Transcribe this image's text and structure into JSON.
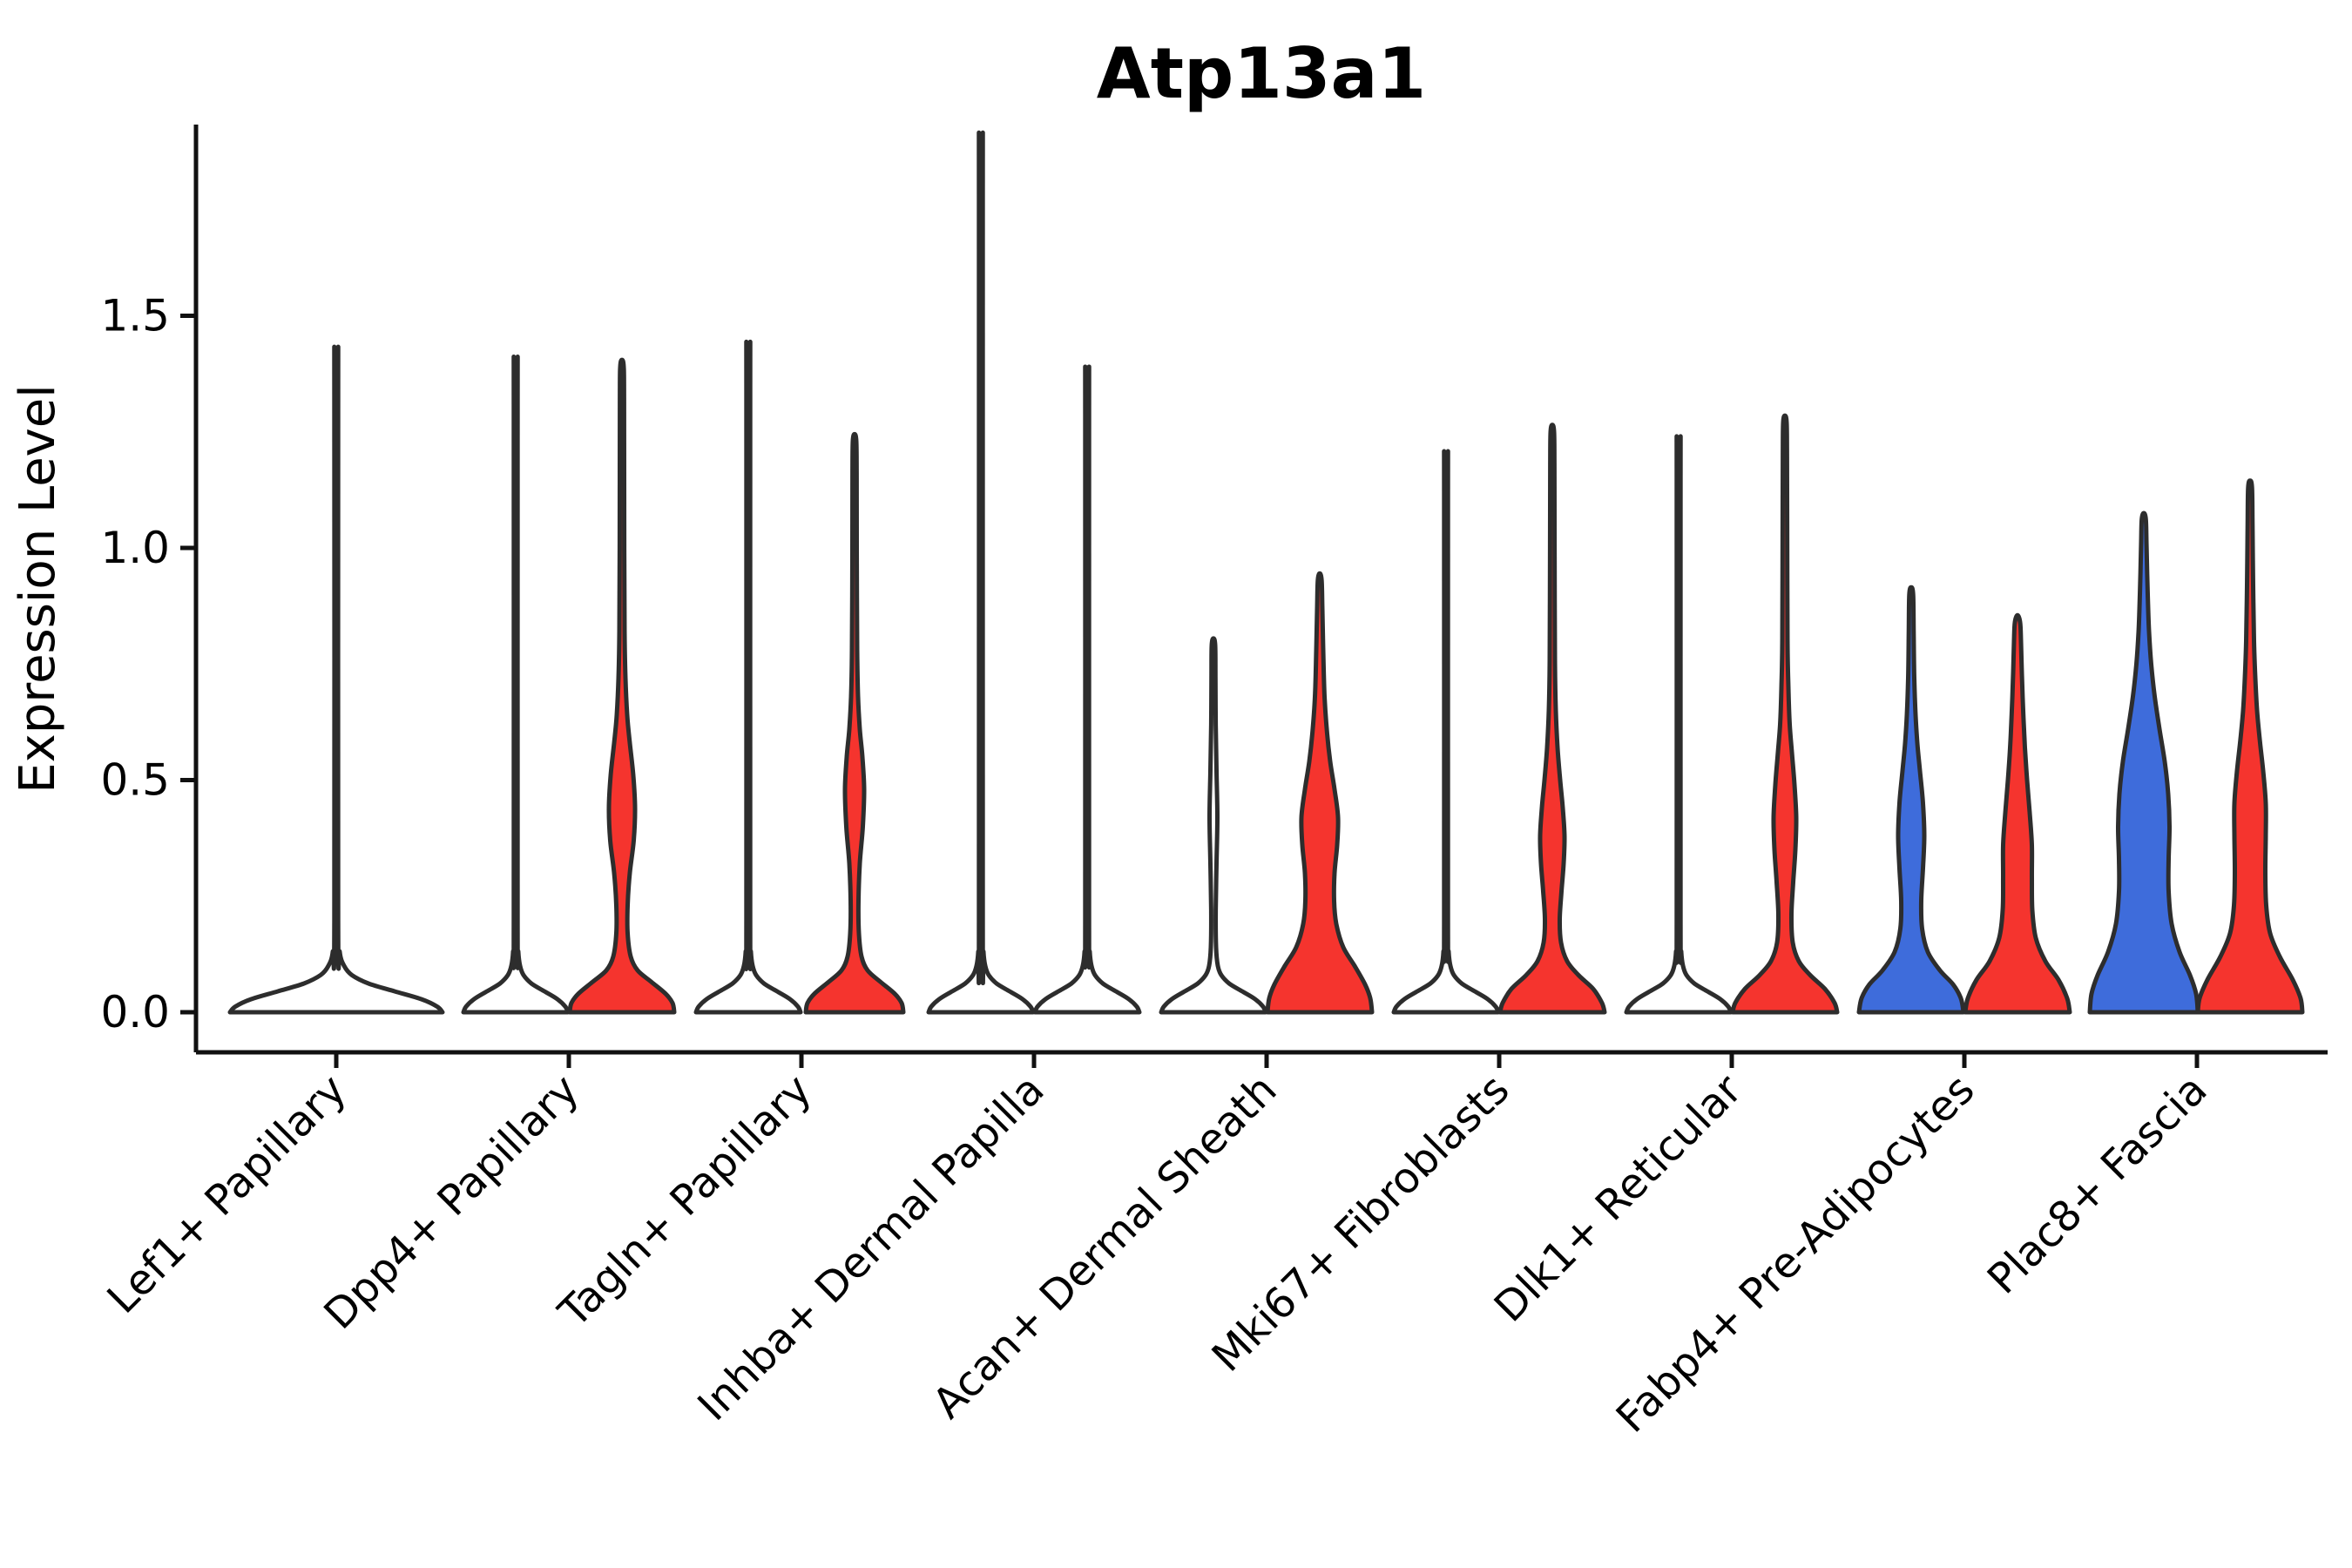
{
  "title": "Atp13a1",
  "y_axis": {
    "label": "Expression Level"
  },
  "colors": {
    "red": "#F5342E",
    "blue": "#3E6CDB",
    "violin_stroke": "#2D2D2D",
    "axis": "#111111",
    "text": "#000000",
    "background": "#ffffff"
  },
  "chart_data": {
    "type": "violin",
    "title": "Atp13a1",
    "xlabel": "",
    "ylabel": "Expression Level",
    "ylim": [
      -0.09,
      1.91
    ],
    "yticks": [
      0.0,
      0.5,
      1.0,
      1.5
    ],
    "ytick_labels": [
      "0.0",
      "0.5",
      "1.0",
      "1.5"
    ],
    "grid": false,
    "legend": null,
    "categories": [
      "Lef1+ Papillary",
      "Dpp4+ Papillary",
      "Tagln+ Papillary",
      "Inhba+ Dermal Papilla",
      "Acan+ Dermal Sheath",
      "Mki67+ Fibroblasts",
      "Dlk1+ Reticular",
      "Fabp4+ Pre-Adipocytes",
      "Plac8+ Fascia"
    ],
    "groups": [
      {
        "category": "Lef1+ Papillary",
        "violins": [
          {
            "side": "single",
            "color": "none",
            "max": 1.39,
            "profile": "lef1_single"
          }
        ]
      },
      {
        "category": "Dpp4+ Papillary",
        "violins": [
          {
            "side": "left",
            "color": "none",
            "max": 1.37,
            "profile": "collapsed"
          },
          {
            "side": "right",
            "color": "red",
            "max": 1.39,
            "profile": "dpp4_right"
          }
        ]
      },
      {
        "category": "Tagln+ Papillary",
        "violins": [
          {
            "side": "left",
            "color": "none",
            "max": 1.4,
            "profile": "collapsed"
          },
          {
            "side": "right",
            "color": "red",
            "max": 1.23,
            "profile": "tagln_right"
          }
        ]
      },
      {
        "category": "Inhba+ Dermal Papilla",
        "violins": [
          {
            "side": "left",
            "color": "none",
            "max": 1.82,
            "profile": "collapsed"
          },
          {
            "side": "right",
            "color": "none",
            "max": 1.35,
            "profile": "collapsed"
          }
        ]
      },
      {
        "category": "Acan+ Dermal Sheath",
        "violins": [
          {
            "side": "left",
            "color": "none",
            "max": 0.79,
            "profile": "acan_left"
          },
          {
            "side": "right",
            "color": "red",
            "max": 0.93,
            "profile": "acan_right"
          }
        ]
      },
      {
        "category": "Mki67+ Fibroblasts",
        "violins": [
          {
            "side": "left",
            "color": "none",
            "max": 1.18,
            "profile": "collapsed"
          },
          {
            "side": "right",
            "color": "red",
            "max": 1.25,
            "profile": "mki67_right"
          }
        ]
      },
      {
        "category": "Dlk1+ Reticular",
        "violins": [
          {
            "side": "left",
            "color": "none",
            "max": 1.21,
            "profile": "collapsed"
          },
          {
            "side": "right",
            "color": "red",
            "max": 1.27,
            "profile": "dlk1_right"
          }
        ]
      },
      {
        "category": "Fabp4+ Pre-Adipocytes",
        "violins": [
          {
            "side": "left",
            "color": "blue",
            "max": 0.9,
            "profile": "fabp4_left"
          },
          {
            "side": "right",
            "color": "red",
            "max": 0.84,
            "profile": "fabp4_right"
          }
        ]
      },
      {
        "category": "Plac8+ Fascia",
        "violins": [
          {
            "side": "left",
            "color": "blue",
            "max": 1.06,
            "profile": "plac8_left"
          },
          {
            "side": "right",
            "color": "red",
            "max": 1.13,
            "profile": "plac8_right"
          }
        ]
      }
    ],
    "profiles": {
      "collapsed": [
        [
          0,
          60
        ],
        [
          0.012,
          57
        ],
        [
          0.028,
          48
        ],
        [
          0.045,
          33
        ],
        [
          0.062,
          18
        ],
        [
          0.08,
          9
        ],
        [
          0.1,
          5
        ],
        [
          0.13,
          3
        ],
        [
          0.2,
          2.2
        ]
      ],
      "lef1_single": [
        [
          0,
          122
        ],
        [
          0.012,
          116
        ],
        [
          0.028,
          98
        ],
        [
          0.045,
          67
        ],
        [
          0.062,
          37
        ],
        [
          0.08,
          18
        ],
        [
          0.1,
          9
        ],
        [
          0.13,
          4
        ],
        [
          0.2,
          2.2
        ]
      ],
      "acan_left": [
        [
          0,
          60
        ],
        [
          0.012,
          57
        ],
        [
          0.028,
          48
        ],
        [
          0.045,
          33
        ],
        [
          0.062,
          18
        ],
        [
          0.08,
          9
        ],
        [
          0.1,
          5
        ],
        [
          0.14,
          3
        ],
        [
          0.22,
          2.6
        ],
        [
          0.32,
          3.5
        ],
        [
          0.42,
          4.5
        ],
        [
          0.52,
          3.5
        ],
        [
          0.62,
          2.6
        ],
        [
          0.72,
          2.3
        ],
        [
          0.79,
          2
        ]
      ],
      "dpp4_right": [
        [
          0,
          60
        ],
        [
          0.02,
          58
        ],
        [
          0.04,
          50
        ],
        [
          0.065,
          34
        ],
        [
          0.09,
          18
        ],
        [
          0.12,
          10
        ],
        [
          0.17,
          6.5
        ],
        [
          0.23,
          6.5
        ],
        [
          0.3,
          9
        ],
        [
          0.37,
          13.5
        ],
        [
          0.44,
          15
        ],
        [
          0.51,
          13
        ],
        [
          0.58,
          9
        ],
        [
          0.64,
          6
        ],
        [
          0.72,
          4
        ],
        [
          0.82,
          3
        ],
        [
          1.0,
          2.6
        ],
        [
          1.32,
          2.4
        ],
        [
          1.39,
          2
        ]
      ],
      "tagln_right": [
        [
          0,
          56
        ],
        [
          0.02,
          54
        ],
        [
          0.04,
          46
        ],
        [
          0.065,
          30
        ],
        [
          0.09,
          15
        ],
        [
          0.12,
          8
        ],
        [
          0.17,
          5
        ],
        [
          0.24,
          4.5
        ],
        [
          0.32,
          6
        ],
        [
          0.4,
          9.5
        ],
        [
          0.48,
          11
        ],
        [
          0.55,
          9
        ],
        [
          0.61,
          6
        ],
        [
          0.68,
          4
        ],
        [
          0.78,
          3
        ],
        [
          1.0,
          2.5
        ],
        [
          1.16,
          2.4
        ],
        [
          1.23,
          2
        ]
      ],
      "acan_right": [
        [
          0,
          60
        ],
        [
          0.03,
          58
        ],
        [
          0.06,
          52
        ],
        [
          0.1,
          40
        ],
        [
          0.14,
          27
        ],
        [
          0.19,
          19
        ],
        [
          0.24,
          16.5
        ],
        [
          0.3,
          17
        ],
        [
          0.36,
          20
        ],
        [
          0.42,
          21
        ],
        [
          0.48,
          17
        ],
        [
          0.54,
          12
        ],
        [
          0.6,
          8.5
        ],
        [
          0.68,
          5.5
        ],
        [
          0.78,
          4
        ],
        [
          0.87,
          3
        ],
        [
          0.93,
          2.2
        ]
      ],
      "mki67_right": [
        [
          0,
          60
        ],
        [
          0.02,
          57
        ],
        [
          0.05,
          47
        ],
        [
          0.08,
          30
        ],
        [
          0.11,
          17
        ],
        [
          0.15,
          10
        ],
        [
          0.2,
          8.5
        ],
        [
          0.26,
          10.5
        ],
        [
          0.32,
          13
        ],
        [
          0.38,
          14
        ],
        [
          0.44,
          12
        ],
        [
          0.5,
          9
        ],
        [
          0.57,
          6
        ],
        [
          0.65,
          4
        ],
        [
          0.76,
          3
        ],
        [
          1.0,
          2.6
        ],
        [
          1.18,
          2.4
        ],
        [
          1.25,
          2
        ]
      ],
      "dlk1_right": [
        [
          0,
          60
        ],
        [
          0.02,
          57
        ],
        [
          0.05,
          46
        ],
        [
          0.08,
          29
        ],
        [
          0.11,
          16
        ],
        [
          0.15,
          9
        ],
        [
          0.21,
          7.5
        ],
        [
          0.28,
          9.5
        ],
        [
          0.35,
          12
        ],
        [
          0.42,
          13
        ],
        [
          0.49,
          11
        ],
        [
          0.56,
          8
        ],
        [
          0.62,
          5.5
        ],
        [
          0.7,
          4
        ],
        [
          0.8,
          3
        ],
        [
          1.05,
          2.6
        ],
        [
          1.2,
          2.4
        ],
        [
          1.27,
          2
        ]
      ],
      "fabp4_left": [
        [
          0,
          60
        ],
        [
          0.03,
          57
        ],
        [
          0.06,
          48
        ],
        [
          0.09,
          33
        ],
        [
          0.13,
          19
        ],
        [
          0.18,
          12.5
        ],
        [
          0.24,
          11.5
        ],
        [
          0.31,
          13.5
        ],
        [
          0.38,
          15
        ],
        [
          0.45,
          13.5
        ],
        [
          0.52,
          10
        ],
        [
          0.58,
          7
        ],
        [
          0.64,
          5
        ],
        [
          0.72,
          3.5
        ],
        [
          0.82,
          2.8
        ],
        [
          0.9,
          2.2
        ]
      ],
      "fabp4_right": [
        [
          0,
          60
        ],
        [
          0.03,
          57
        ],
        [
          0.07,
          47
        ],
        [
          0.11,
          32
        ],
        [
          0.16,
          21
        ],
        [
          0.22,
          17
        ],
        [
          0.29,
          16.5
        ],
        [
          0.36,
          16.5
        ],
        [
          0.43,
          14
        ],
        [
          0.5,
          11
        ],
        [
          0.57,
          8.5
        ],
        [
          0.65,
          6.5
        ],
        [
          0.73,
          5
        ],
        [
          0.8,
          4
        ],
        [
          0.84,
          3
        ]
      ],
      "plac8_left": [
        [
          0,
          62
        ],
        [
          0.04,
          60
        ],
        [
          0.08,
          53
        ],
        [
          0.13,
          41
        ],
        [
          0.19,
          32
        ],
        [
          0.26,
          28.5
        ],
        [
          0.33,
          28.5
        ],
        [
          0.4,
          29.5
        ],
        [
          0.47,
          28
        ],
        [
          0.54,
          24
        ],
        [
          0.61,
          18
        ],
        [
          0.68,
          12.5
        ],
        [
          0.75,
          8.5
        ],
        [
          0.82,
          6
        ],
        [
          0.9,
          4.5
        ],
        [
          1.0,
          3.2
        ],
        [
          1.06,
          2.4
        ]
      ],
      "plac8_right": [
        [
          0,
          60
        ],
        [
          0.03,
          58
        ],
        [
          0.07,
          49
        ],
        [
          0.12,
          34
        ],
        [
          0.17,
          23
        ],
        [
          0.23,
          18.5
        ],
        [
          0.3,
          17.5
        ],
        [
          0.38,
          18
        ],
        [
          0.45,
          18
        ],
        [
          0.52,
          15
        ],
        [
          0.58,
          11.5
        ],
        [
          0.65,
          8
        ],
        [
          0.72,
          6
        ],
        [
          0.8,
          4.5
        ],
        [
          0.92,
          3.5
        ],
        [
          1.05,
          2.8
        ],
        [
          1.13,
          2.2
        ]
      ]
    }
  }
}
